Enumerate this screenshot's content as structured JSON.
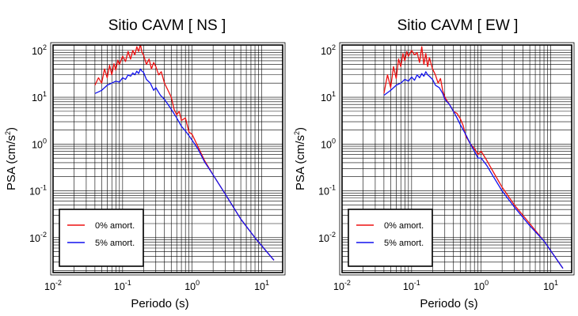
{
  "chart_data": [
    {
      "type": "line",
      "title": "Sitio CAVM [ NS ]",
      "xlabel": "Periodo (s)",
      "ylabel": "PSA (cm/s2)",
      "xscale": "log",
      "yscale": "log",
      "xlim": [
        0.01,
        20
      ],
      "ylim": [
        0.0018,
        130
      ],
      "grid": true,
      "legend_position": "bottom-left",
      "xticks": [
        {
          "base": "10",
          "exp": "-2",
          "value": 0.01
        },
        {
          "base": "10",
          "exp": "-1",
          "value": 0.1
        },
        {
          "base": "10",
          "exp": "0",
          "value": 1
        },
        {
          "base": "10",
          "exp": "1",
          "value": 10
        }
      ],
      "yticks": [
        {
          "base": "10",
          "exp": "-2",
          "value": 0.01
        },
        {
          "base": "10",
          "exp": "-1",
          "value": 0.1
        },
        {
          "base": "10",
          "exp": "0",
          "value": 1
        },
        {
          "base": "10",
          "exp": "1",
          "value": 10
        },
        {
          "base": "10",
          "exp": "2",
          "value": 100
        }
      ],
      "series": [
        {
          "name": "0% amort.",
          "color": "#ee1111",
          "x": [
            0.04,
            0.045,
            0.05,
            0.055,
            0.06,
            0.065,
            0.07,
            0.075,
            0.08,
            0.085,
            0.09,
            0.1,
            0.11,
            0.12,
            0.13,
            0.14,
            0.15,
            0.16,
            0.17,
            0.18,
            0.19,
            0.2,
            0.22,
            0.24,
            0.26,
            0.28,
            0.3,
            0.33,
            0.36,
            0.4,
            0.45,
            0.5,
            0.55,
            0.6,
            0.65,
            0.7,
            0.8,
            0.9,
            1.0,
            1.2,
            1.5,
            2.0,
            3.0,
            5.0,
            8.0,
            15.0
          ],
          "y": [
            18,
            26,
            20,
            40,
            26,
            48,
            30,
            52,
            38,
            62,
            50,
            75,
            58,
            95,
            65,
            100,
            80,
            120,
            95,
            135,
            90,
            80,
            50,
            65,
            40,
            55,
            45,
            30,
            35,
            20,
            14,
            10,
            5.5,
            4.2,
            5.0,
            3.2,
            3.6,
            1.8,
            1.6,
            0.9,
            0.45,
            0.22,
            0.085,
            0.025,
            0.01,
            0.0033
          ]
        },
        {
          "name": "5% amort.",
          "color": "#1111ee",
          "x": [
            0.04,
            0.045,
            0.05,
            0.06,
            0.07,
            0.08,
            0.09,
            0.1,
            0.11,
            0.12,
            0.13,
            0.14,
            0.15,
            0.16,
            0.17,
            0.18,
            0.19,
            0.2,
            0.22,
            0.25,
            0.28,
            0.3,
            0.35,
            0.4,
            0.45,
            0.5,
            0.6,
            0.7,
            0.8,
            0.9,
            1.0,
            1.2,
            1.5,
            2.0,
            3.0,
            5.0,
            8.0,
            15.0
          ],
          "y": [
            12,
            13,
            14,
            18,
            20,
            22,
            21,
            26,
            24,
            30,
            28,
            33,
            30,
            36,
            32,
            40,
            36,
            34,
            24,
            20,
            14,
            16,
            11,
            9,
            7,
            5.5,
            3.6,
            2.4,
            1.9,
            1.5,
            1.2,
            0.8,
            0.42,
            0.22,
            0.085,
            0.025,
            0.01,
            0.0033
          ]
        }
      ]
    },
    {
      "type": "line",
      "title": "Sitio CAVM [ EW ]",
      "xlabel": "Periodo (s)",
      "ylabel": "PSA (cm/s2)",
      "xscale": "log",
      "yscale": "log",
      "xlim": [
        0.01,
        20
      ],
      "ylim": [
        0.0018,
        130
      ],
      "grid": true,
      "legend_position": "bottom-left",
      "xticks": [
        {
          "base": "10",
          "exp": "-2",
          "value": 0.01
        },
        {
          "base": "10",
          "exp": "-1",
          "value": 0.1
        },
        {
          "base": "10",
          "exp": "0",
          "value": 1
        },
        {
          "base": "10",
          "exp": "1",
          "value": 10
        }
      ],
      "yticks": [
        {
          "base": "10",
          "exp": "-2",
          "value": 0.01
        },
        {
          "base": "10",
          "exp": "-1",
          "value": 0.1
        },
        {
          "base": "10",
          "exp": "0",
          "value": 1
        },
        {
          "base": "10",
          "exp": "1",
          "value": 10
        },
        {
          "base": "10",
          "exp": "2",
          "value": 100
        }
      ],
      "series": [
        {
          "name": "0% amort.",
          "color": "#ee1111",
          "x": [
            0.04,
            0.045,
            0.05,
            0.055,
            0.06,
            0.065,
            0.07,
            0.075,
            0.08,
            0.085,
            0.09,
            0.1,
            0.11,
            0.12,
            0.13,
            0.14,
            0.15,
            0.16,
            0.17,
            0.18,
            0.2,
            0.22,
            0.24,
            0.26,
            0.28,
            0.3,
            0.35,
            0.4,
            0.45,
            0.5,
            0.55,
            0.6,
            0.7,
            0.8,
            0.9,
            1.0,
            1.2,
            1.5,
            2.0,
            3.0,
            5.0,
            8.0,
            15.0
          ],
          "y": [
            12,
            30,
            16,
            45,
            25,
            65,
            45,
            85,
            60,
            95,
            75,
            100,
            80,
            90,
            55,
            120,
            50,
            85,
            45,
            70,
            40,
            30,
            20,
            25,
            14,
            10,
            7,
            5,
            4.5,
            3.5,
            2.5,
            1.5,
            1.0,
            0.8,
            0.6,
            0.7,
            0.45,
            0.25,
            0.12,
            0.05,
            0.02,
            0.0085,
            0.0022
          ]
        },
        {
          "name": "5% amort.",
          "color": "#1111ee",
          "x": [
            0.04,
            0.05,
            0.06,
            0.07,
            0.08,
            0.09,
            0.1,
            0.11,
            0.12,
            0.13,
            0.14,
            0.15,
            0.16,
            0.17,
            0.18,
            0.2,
            0.22,
            0.25,
            0.28,
            0.3,
            0.35,
            0.4,
            0.45,
            0.5,
            0.6,
            0.7,
            0.8,
            0.9,
            1.0,
            1.2,
            1.5,
            2.0,
            3.0,
            5.0,
            8.0,
            15.0
          ],
          "y": [
            11,
            14,
            18,
            20,
            24,
            22,
            27,
            23,
            30,
            26,
            32,
            28,
            35,
            30,
            28,
            24,
            18,
            16,
            12,
            9,
            7,
            5,
            3.6,
            2.6,
            1.6,
            1.0,
            0.7,
            0.5,
            0.5,
            0.35,
            0.2,
            0.1,
            0.045,
            0.018,
            0.0085,
            0.0022
          ]
        }
      ]
    }
  ]
}
